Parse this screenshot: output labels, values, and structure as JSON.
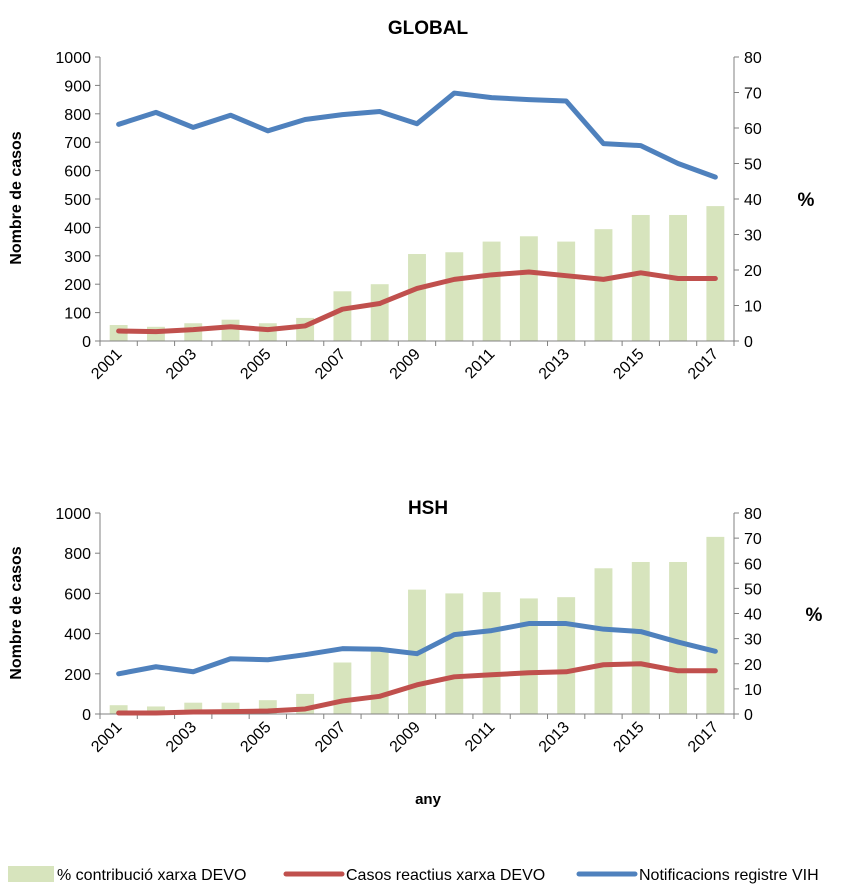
{
  "colors": {
    "bar": "#d7e4bd",
    "reactius": "#c0504d",
    "notif": "#4f81bd",
    "axis": "#808080"
  },
  "legend": {
    "bar_label": "% contribució xarxa DEVO",
    "reactius_label": "Casos reactius xarxa DEVO",
    "notif_label": "Notificacions registre VIH",
    "placement": "bottom"
  },
  "chart_data": [
    {
      "type": "bar+line",
      "title": "GLOBAL",
      "ylabel": "Nombre de casos",
      "y2label": "%",
      "xlabel": "",
      "ylim": [
        0,
        1000
      ],
      "y2lim": [
        0,
        80
      ],
      "yticks": [
        0,
        100,
        200,
        300,
        400,
        500,
        600,
        700,
        800,
        900,
        1000
      ],
      "y2ticks": [
        0,
        10,
        20,
        30,
        40,
        50,
        60,
        70,
        80
      ],
      "years": [
        2001,
        2002,
        2003,
        2004,
        2005,
        2006,
        2007,
        2008,
        2009,
        2010,
        2011,
        2012,
        2013,
        2014,
        2015,
        2016,
        2017
      ],
      "xtick_labels": [
        "2001",
        "2003",
        "2005",
        "2007",
        "2009",
        "2011",
        "2013",
        "2015",
        "2017"
      ],
      "pct_contribucio": [
        4.5,
        4,
        5,
        6,
        5,
        6.5,
        14,
        16,
        24.5,
        25,
        28,
        29.5,
        28,
        31.5,
        35.5,
        35.5,
        38
      ],
      "casos_reactius": [
        35,
        33,
        40,
        50,
        40,
        53,
        112,
        132,
        185,
        217,
        233,
        243,
        230,
        217,
        240,
        220,
        220
      ],
      "notificacions": [
        763,
        805,
        752,
        795,
        740,
        780,
        797,
        808,
        765,
        873,
        857,
        850,
        845,
        695,
        688,
        625,
        577
      ]
    },
    {
      "type": "bar+line",
      "title": "HSH",
      "ylabel": "Nombre de casos",
      "y2label": "%",
      "xlabel": "any",
      "ylim": [
        0,
        1000
      ],
      "y2lim": [
        0,
        80
      ],
      "yticks": [
        0,
        200,
        400,
        600,
        800,
        1000
      ],
      "y2ticks": [
        0,
        10,
        20,
        30,
        40,
        50,
        60,
        70,
        80
      ],
      "years": [
        2001,
        2002,
        2003,
        2004,
        2005,
        2006,
        2007,
        2008,
        2009,
        2010,
        2011,
        2012,
        2013,
        2014,
        2015,
        2016,
        2017
      ],
      "xtick_labels": [
        "2001",
        "2003",
        "2005",
        "2007",
        "2009",
        "2011",
        "2013",
        "2015",
        "2017"
      ],
      "pct_contribucio": [
        3.5,
        3,
        4.5,
        4.5,
        5.5,
        8,
        20.5,
        25,
        49.5,
        48,
        48.5,
        46,
        46.5,
        58,
        60.5,
        60.5,
        70.5
      ],
      "casos_reactius": [
        5,
        5,
        10,
        12,
        15,
        25,
        65,
        88,
        145,
        185,
        195,
        205,
        210,
        245,
        250,
        215,
        215
      ],
      "notificacions": [
        200,
        235,
        210,
        275,
        270,
        295,
        325,
        322,
        300,
        395,
        415,
        450,
        450,
        422,
        410,
        358,
        312
      ]
    }
  ]
}
